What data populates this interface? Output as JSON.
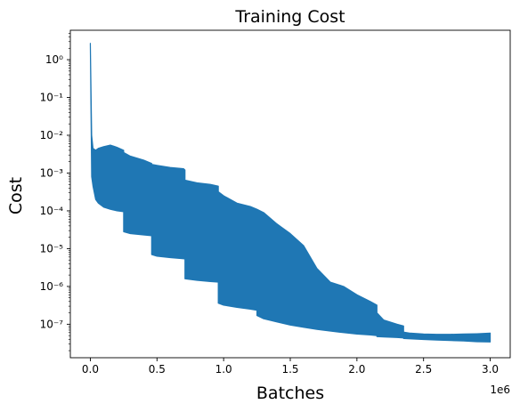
{
  "chart_data": {
    "type": "area",
    "title": "Training Cost",
    "xlabel": "Batches",
    "ylabel": "Cost",
    "x_offset_label": "1e6",
    "x_scale": "linear",
    "y_scale": "log",
    "xlim": [
      -150000,
      3150000
    ],
    "ylim": [
      1.3e-08,
      6.0
    ],
    "x_ticks": [
      0,
      500000,
      1000000,
      1500000,
      2000000,
      2500000,
      3000000
    ],
    "x_tick_labels": [
      "0.0",
      "0.5",
      "1.0",
      "1.5",
      "2.0",
      "2.5",
      "3.0"
    ],
    "y_ticks": [
      1e-07,
      1e-06,
      1e-05,
      0.0001,
      0.001,
      0.01,
      0.1,
      1
    ],
    "y_tick_labels": [
      "10⁻⁷",
      "10⁻⁶",
      "10⁻⁵",
      "10⁻⁴",
      "10⁻³",
      "10⁻²",
      "10⁻¹",
      "10⁰"
    ],
    "grid": false,
    "color": "#1f77b4",
    "series": [
      {
        "envelope_x": [
          0,
          10000,
          20000,
          40000,
          60000,
          100000,
          150000,
          200000,
          250000,
          250001,
          300000,
          400000,
          460000,
          460001,
          500000,
          600000,
          700000,
          710000,
          710001,
          800000,
          900000,
          960000,
          960001,
          1000000,
          1100000,
          1200000,
          1250000,
          1250001,
          1300000,
          1400000,
          1500000,
          1600000,
          1700000,
          1800000,
          1900000,
          2000000,
          2100000,
          2150000,
          2150001,
          2200000,
          2300000,
          2350000,
          2350001,
          2400000,
          2500000,
          2600000,
          2700000,
          2800000,
          2900000,
          3000000
        ],
        "lower": [
          2.5,
          0.0008,
          0.00045,
          0.0002,
          0.00016,
          0.000125,
          0.00011,
          0.0001,
          9.5e-05,
          2.8e-05,
          2.5e-05,
          2.3e-05,
          2.2e-05,
          7e-06,
          6.3e-06,
          5.8e-06,
          5.4e-06,
          5.3e-06,
          1.6e-06,
          1.45e-06,
          1.35e-06,
          1.3e-06,
          3.6e-07,
          3.2e-07,
          2.8e-07,
          2.5e-07,
          2.35e-07,
          1.7e-07,
          1.4e-07,
          1.15e-07,
          9.5e-08,
          8.3e-08,
          7.3e-08,
          6.6e-08,
          6e-08,
          5.5e-08,
          5.2e-08,
          5e-08,
          4.7e-08,
          4.6e-08,
          4.45e-08,
          4.35e-08,
          4.2e-08,
          4.1e-08,
          3.95e-08,
          3.8e-08,
          3.7e-08,
          3.6e-08,
          3.45e-08,
          3.4e-08
        ],
        "upper": [
          2.7,
          0.01,
          0.0045,
          0.004,
          0.0045,
          0.005,
          0.0055,
          0.0048,
          0.004,
          0.0035,
          0.0028,
          0.0022,
          0.0018,
          0.0017,
          0.0016,
          0.0014,
          0.0013,
          0.0012,
          0.00065,
          0.00055,
          0.0005,
          0.00045,
          0.00032,
          0.00025,
          0.00016,
          0.00013,
          0.00011,
          0.00011,
          9e-05,
          4.5e-05,
          2.5e-05,
          1.2e-05,
          3e-06,
          1.3e-06,
          1e-06,
          6e-07,
          4e-07,
          3.2e-07,
          2e-07,
          1.3e-07,
          1e-07,
          9e-08,
          6.2e-08,
          5.8e-08,
          5.5e-08,
          5.4e-08,
          5.4e-08,
          5.5e-08,
          5.6e-08,
          5.8e-08
        ]
      }
    ]
  }
}
